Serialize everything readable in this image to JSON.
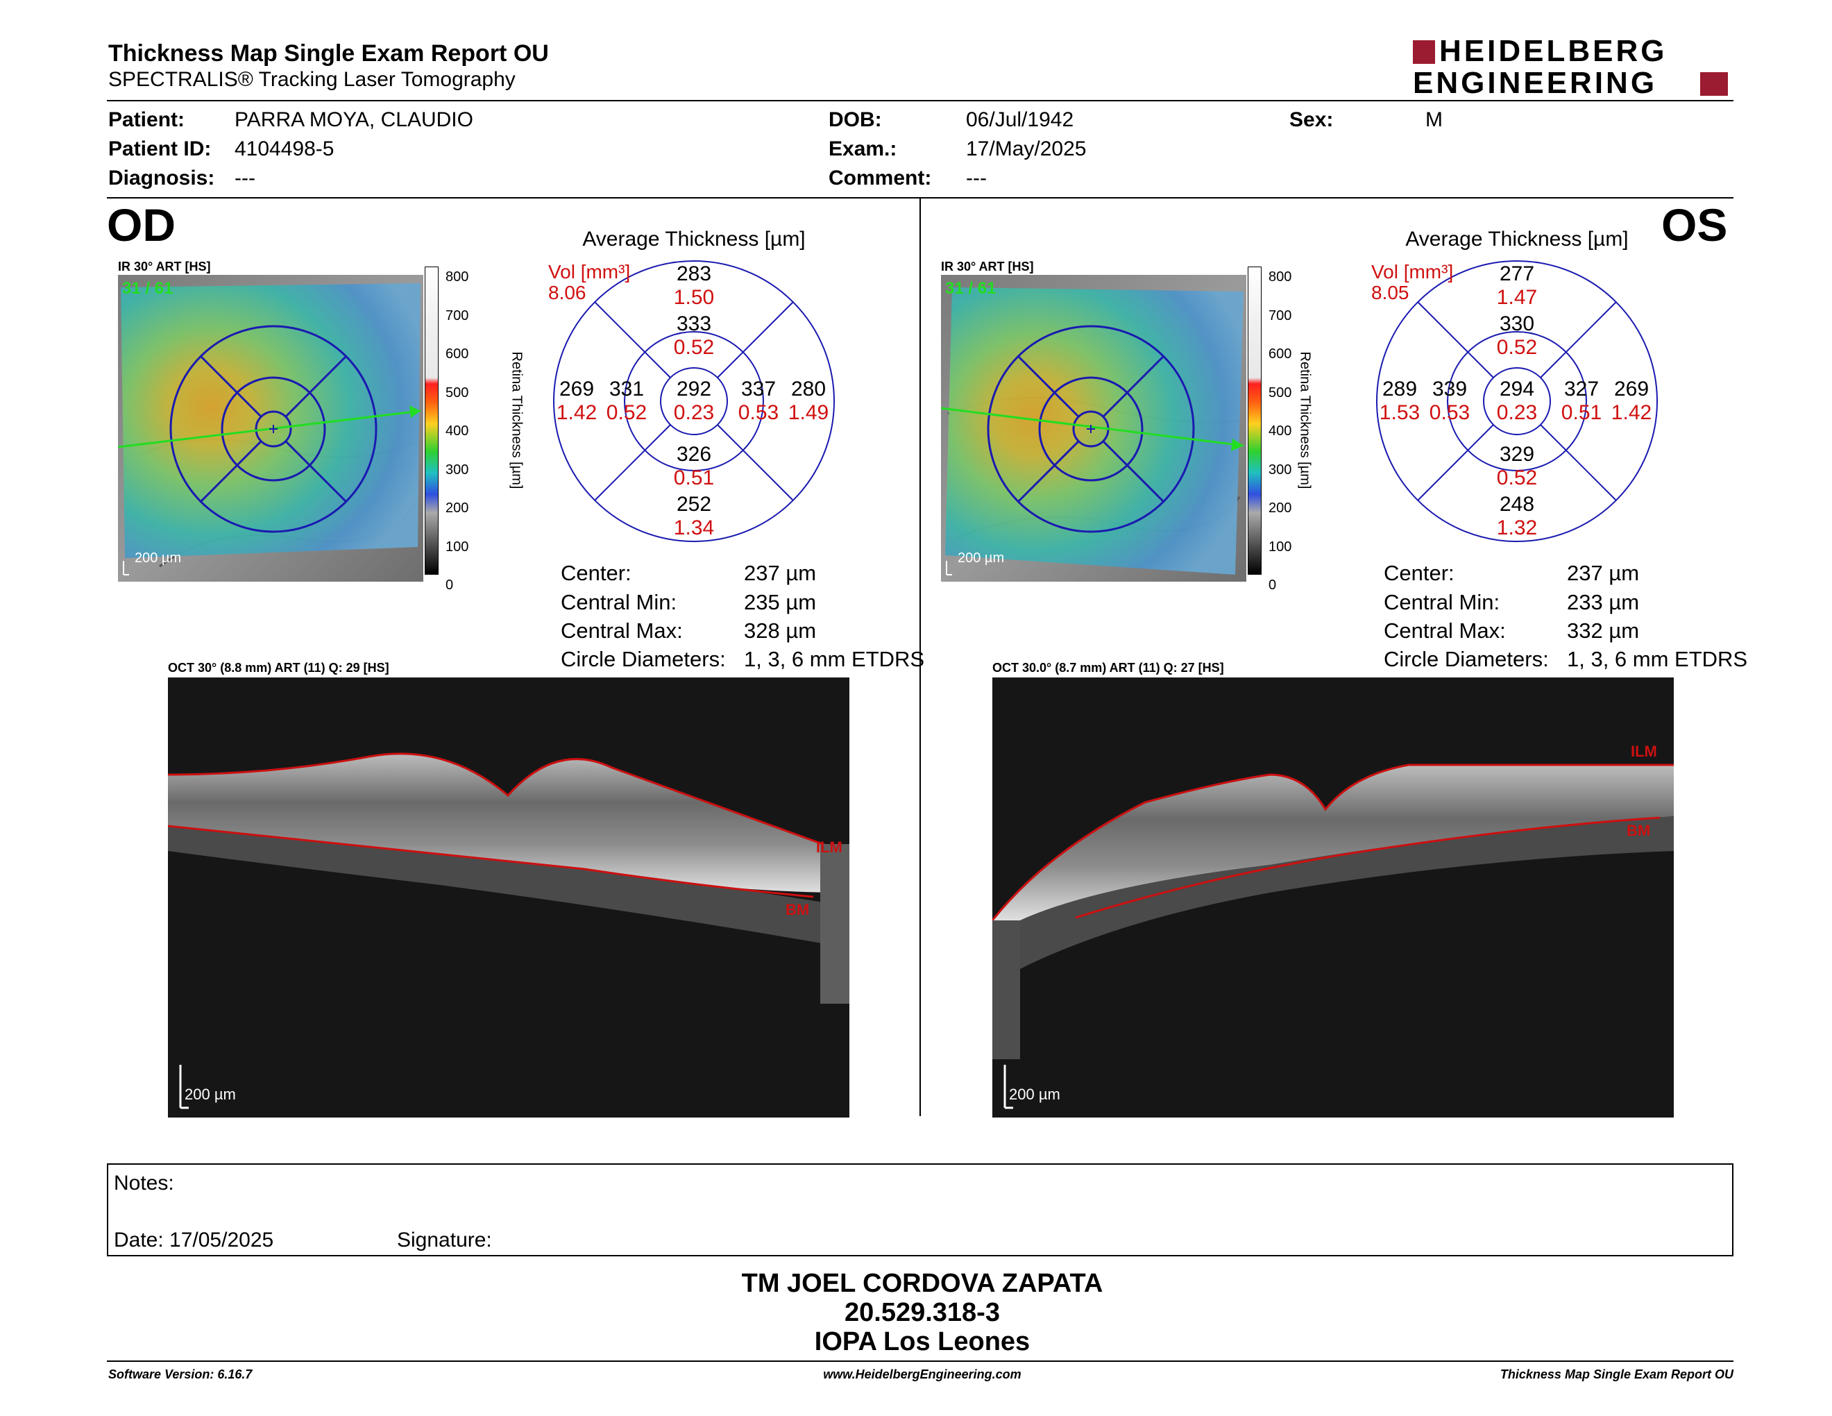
{
  "header": {
    "title": "Thickness Map Single Exam Report OU",
    "subtitle": "SPECTRALIS® Tracking Laser Tomography",
    "logo_top": "HEIDELBERG",
    "logo_bottom": "ENGINEERING",
    "logo_color": "#9b1b30"
  },
  "patient": {
    "patient_label": "Patient:",
    "patient": "PARRA MOYA, CLAUDIO",
    "id_label": "Patient ID:",
    "id": "4104498-5",
    "diag_label": "Diagnosis:",
    "diagnosis": "---",
    "dob_label": "DOB:",
    "dob": "06/Jul/1942",
    "exam_label": "Exam.:",
    "exam": "17/May/2025",
    "comment_label": "Comment:",
    "comment": "---",
    "sex_label": "Sex:",
    "sex": "M"
  },
  "od": {
    "eye": "OD",
    "ir_tag": "IR 30° ART [HS]",
    "ir_count": "31 / 61",
    "scale_label": "200 µm",
    "colorbar_ticks": [
      "800",
      "700",
      "600",
      "500",
      "400",
      "300",
      "200",
      "100",
      "0"
    ],
    "colorbar_title": "Retina  Thickness [µm]",
    "avg_title": "Average Thickness [µm]",
    "vol_label": "Vol [mm³]",
    "vol_total": "8.06",
    "sectors": {
      "outer_sup": {
        "t": "283",
        "v": "1.50"
      },
      "inner_sup": {
        "t": "333",
        "v": "0.52"
      },
      "outer_temp": {
        "t": "269",
        "v": "1.42"
      },
      "inner_temp": {
        "t": "331",
        "v": "0.52"
      },
      "center": {
        "t": "292",
        "v": "0.23"
      },
      "inner_nasal": {
        "t": "337",
        "v": "0.53"
      },
      "outer_nasal": {
        "t": "280",
        "v": "1.49"
      },
      "inner_inf": {
        "t": "326",
        "v": "0.51"
      },
      "outer_inf": {
        "t": "252",
        "v": "1.34"
      }
    },
    "stats": {
      "center_label": "Center:",
      "center": "237 µm",
      "cmin_label": "Central Min:",
      "cmin": "235 µm",
      "cmax_label": "Central Max:",
      "cmax": "328 µm",
      "circ_label": "Circle Diameters:",
      "circ": "1, 3, 6 mm ETDRS"
    },
    "oct_tag": "OCT 30° (8.8 mm) ART (11) Q: 29 [HS]",
    "oct_scale": "200 µm",
    "ilm": "ILM",
    "bm": "BM"
  },
  "os": {
    "eye": "OS",
    "ir_tag": "IR 30° ART [HS]",
    "ir_count": "31 / 61",
    "scale_label": "200 µm",
    "colorbar_ticks": [
      "800",
      "700",
      "600",
      "500",
      "400",
      "300",
      "200",
      "100",
      "0"
    ],
    "colorbar_title": "Retina  Thickness [µm]",
    "avg_title": "Average Thickness [µm]",
    "vol_label": "Vol [mm³]",
    "vol_total": "8.05",
    "sectors": {
      "outer_sup": {
        "t": "277",
        "v": "1.47"
      },
      "inner_sup": {
        "t": "330",
        "v": "0.52"
      },
      "outer_temp": {
        "t": "289",
        "v": "1.53"
      },
      "inner_temp": {
        "t": "339",
        "v": "0.53"
      },
      "center": {
        "t": "294",
        "v": "0.23"
      },
      "inner_nasal": {
        "t": "327",
        "v": "0.51"
      },
      "outer_nasal": {
        "t": "269",
        "v": "1.42"
      },
      "inner_inf": {
        "t": "329",
        "v": "0.52"
      },
      "outer_inf": {
        "t": "248",
        "v": "1.32"
      }
    },
    "stats": {
      "center_label": "Center:",
      "center": "237 µm",
      "cmin_label": "Central Min:",
      "cmin": "233 µm",
      "cmax_label": "Central Max:",
      "cmax": "332 µm",
      "circ_label": "Circle Diameters:",
      "circ": "1, 3, 6 mm ETDRS"
    },
    "oct_tag": "OCT 30.0° (8.7 mm) ART (11) Q: 27 [HS]",
    "oct_scale": "200 µm",
    "ilm": "ILM",
    "bm": "BM"
  },
  "notes": {
    "notes_label": "Notes:",
    "date_label": "Date: 17/05/2025",
    "sig_label": "Signature:"
  },
  "signature": {
    "line1": "TM JOEL CORDOVA ZAPATA",
    "line2": "20.529.318-3",
    "line3": "IOPA Los Leones"
  },
  "footer": {
    "software": "Software Version: 6.16.7",
    "website": "www.HeidelbergEngineering.com",
    "report": "Thickness Map Single Exam Report OU"
  }
}
